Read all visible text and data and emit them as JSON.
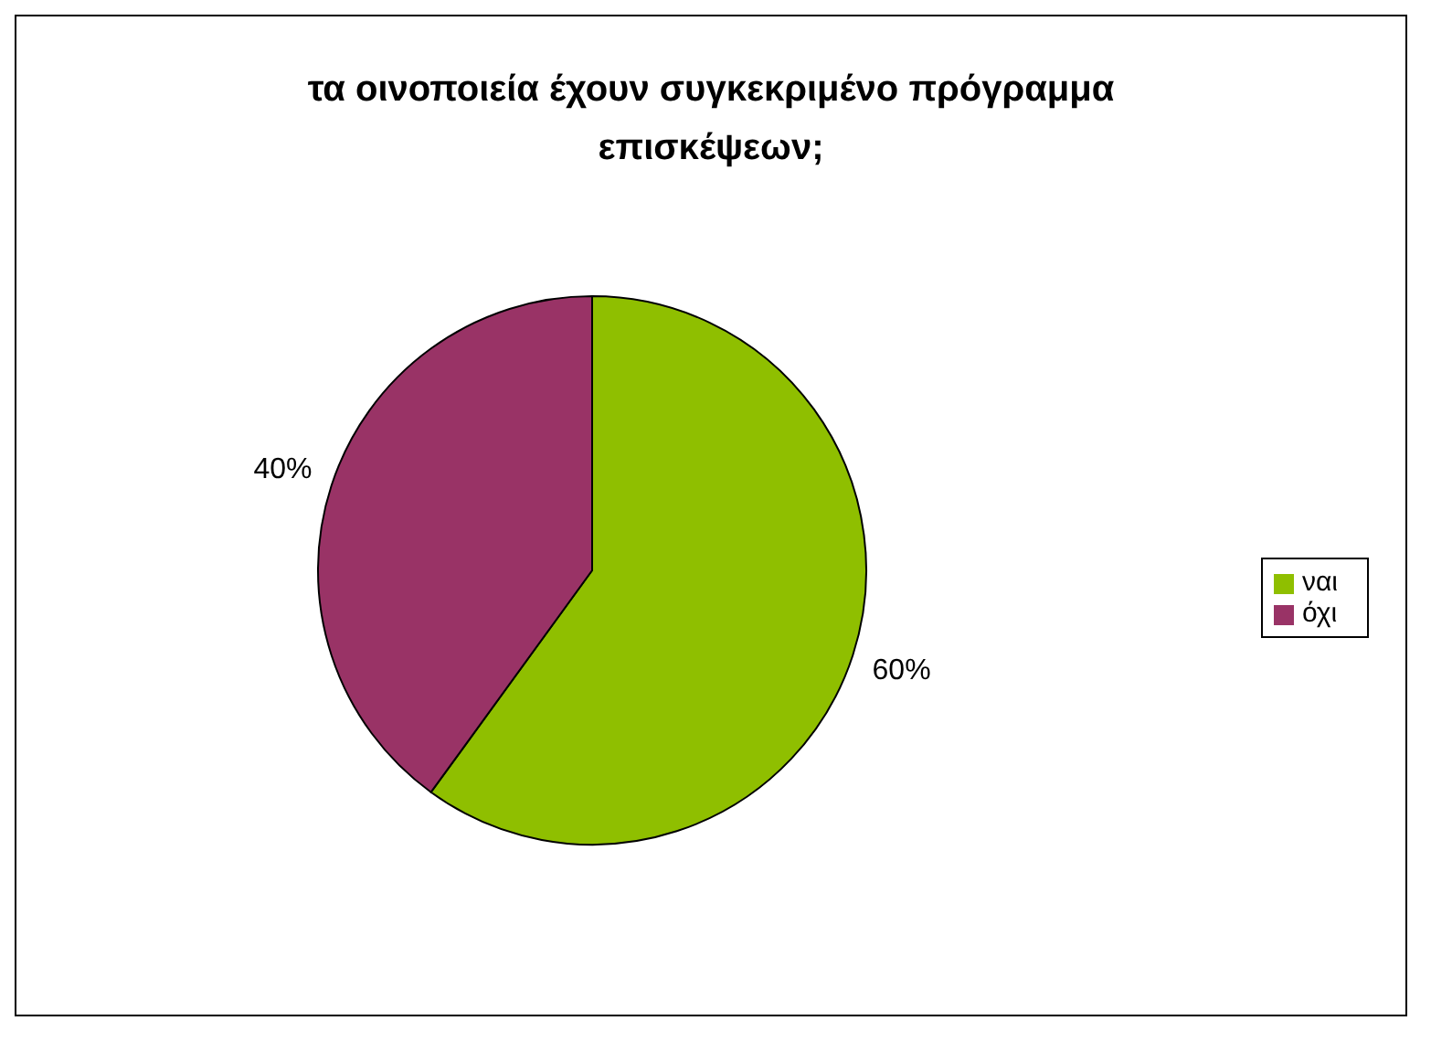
{
  "chart_data": {
    "type": "pie",
    "title": "τα οινοποιεία έχουν συγκεκριμένο πρόγραμμα επισκέψεων;",
    "categories": [
      "ναι",
      "όχι"
    ],
    "values": [
      60,
      40
    ],
    "colors": [
      "#8fbf00",
      "#993366"
    ],
    "value_labels": [
      "60%",
      "40%"
    ],
    "legend": "right"
  }
}
